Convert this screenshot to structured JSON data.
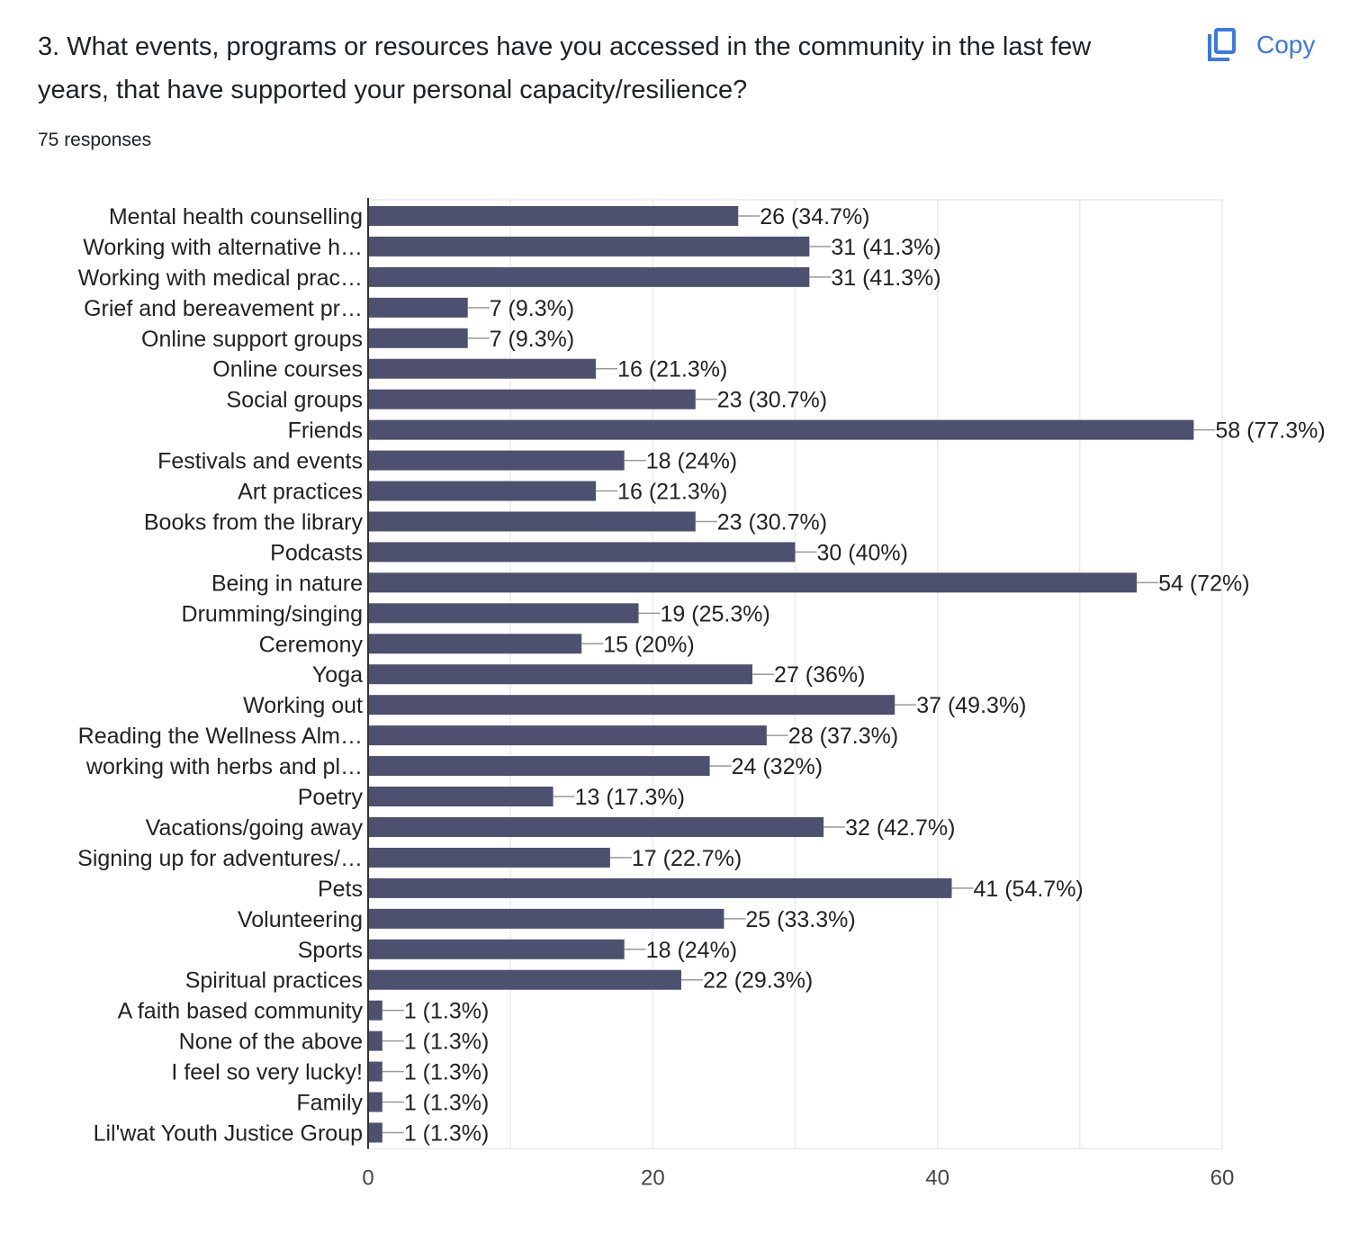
{
  "question": {
    "title": "3. What events, programs or resources have you accessed in the community in the last few years, that have supported your personal capacity/resilience?",
    "responses": "75 responses"
  },
  "copy_button": {
    "label": "Copy",
    "icon": "copy-icon"
  },
  "colors": {
    "bar": "#4e5070",
    "accent": "#3b78e7",
    "grid": "#ebebeb",
    "leader": "#999999"
  },
  "chart_data": {
    "type": "bar",
    "orientation": "horizontal",
    "title": "3. What events, programs or resources have you accessed in the community in the last few years, that have supported your personal capacity/resilience?",
    "xlabel": "",
    "ylabel": "",
    "xlim": [
      0,
      60
    ],
    "xticks": [
      0,
      20,
      40,
      60
    ],
    "grid": true,
    "legend": "none",
    "categories": [
      "Mental health counselling",
      "Working with alternative h…",
      "Working with medical prac…",
      "Grief and bereavement pr…",
      "Online support groups",
      "Online courses",
      "Social groups",
      "Friends",
      "Festivals and events",
      "Art practices",
      "Books from the library",
      "Podcasts",
      "Being in nature",
      "Drumming/singing",
      "Ceremony",
      "Yoga",
      "Working out",
      "Reading the Wellness Alm…",
      "working with herbs and pl…",
      "Poetry",
      "Vacations/going away",
      "Signing up for adventures/…",
      "Pets",
      "Volunteering",
      "Sports",
      "Spiritual practices",
      "A faith based community",
      "None of the above",
      "I feel so very lucky!",
      "Family",
      "Lil'wat Youth Justice Group"
    ],
    "values": [
      26,
      31,
      31,
      7,
      7,
      16,
      23,
      58,
      18,
      16,
      23,
      30,
      54,
      19,
      15,
      27,
      37,
      28,
      24,
      13,
      32,
      17,
      41,
      25,
      18,
      22,
      1,
      1,
      1,
      1,
      1
    ],
    "data_labels": [
      "26 (34.7%)",
      "31 (41.3%)",
      "31 (41.3%)",
      "7 (9.3%)",
      "7 (9.3%)",
      "16 (21.3%)",
      "23 (30.7%)",
      "58 (77.3%)",
      "18 (24%)",
      "16 (21.3%)",
      "23 (30.7%)",
      "30 (40%)",
      "54 (72%)",
      "19 (25.3%)",
      "15 (20%)",
      "27 (36%)",
      "37 (49.3%)",
      "28 (37.3%)",
      "24 (32%)",
      "13 (17.3%)",
      "32 (42.7%)",
      "17 (22.7%)",
      "41 (54.7%)",
      "25 (33.3%)",
      "18 (24%)",
      "22 (29.3%)",
      "1 (1.3%)",
      "1 (1.3%)",
      "1 (1.3%)",
      "1 (1.3%)",
      "1 (1.3%)"
    ]
  }
}
